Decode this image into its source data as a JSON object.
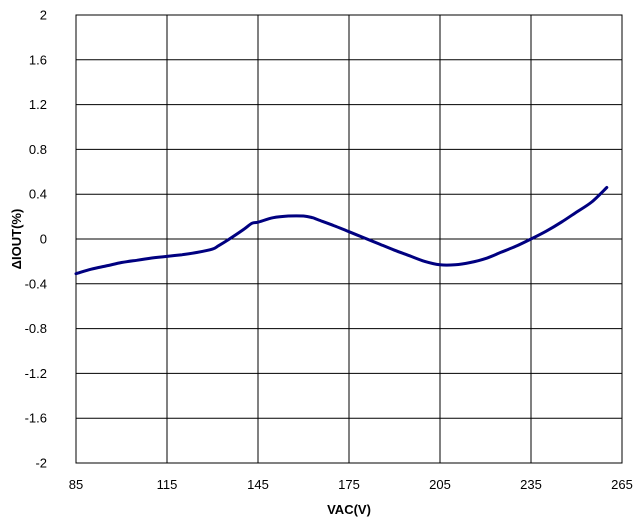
{
  "chart_data": {
    "type": "line",
    "title": "",
    "xlabel": "VAC(V)",
    "ylabel": "ΔIOUT(%)",
    "xlim": [
      85,
      265
    ],
    "ylim": [
      -2,
      2
    ],
    "x_ticks": [
      85,
      115,
      145,
      175,
      205,
      235,
      265
    ],
    "y_ticks": [
      2,
      1.6,
      1.2,
      0.8,
      0.4,
      0,
      -0.4,
      -0.8,
      -1.2,
      -1.6,
      -2
    ],
    "x_tick_labels": [
      "85",
      "115",
      "145",
      "175",
      "205",
      "235",
      "265"
    ],
    "y_tick_labels": [
      "2",
      "1.6",
      "1.2",
      "0.8",
      "0.4",
      "0",
      "-0.4",
      "-0.8",
      "-1.2",
      "-1.6",
      "-2"
    ],
    "grid": true,
    "legend": "none",
    "series": [
      {
        "color": "#000080",
        "x": [
          85,
          90,
          95,
          100,
          105,
          110,
          115,
          120,
          125,
          130,
          132,
          135,
          140,
          143,
          145,
          150,
          155,
          160,
          163,
          165,
          170,
          175,
          180,
          185,
          190,
          195,
          200,
          205,
          210,
          215,
          220,
          225,
          230,
          235,
          240,
          245,
          250,
          255,
          260
        ],
        "y": [
          -0.31,
          -0.27,
          -0.24,
          -0.21,
          -0.19,
          -0.17,
          -0.155,
          -0.14,
          -0.12,
          -0.09,
          -0.06,
          -0.01,
          0.08,
          0.14,
          0.15,
          0.19,
          0.205,
          0.205,
          0.19,
          0.17,
          0.12,
          0.065,
          0.01,
          -0.045,
          -0.1,
          -0.15,
          -0.2,
          -0.23,
          -0.23,
          -0.21,
          -0.175,
          -0.12,
          -0.065,
          0.0,
          0.07,
          0.15,
          0.24,
          0.33,
          0.46
        ]
      }
    ]
  }
}
